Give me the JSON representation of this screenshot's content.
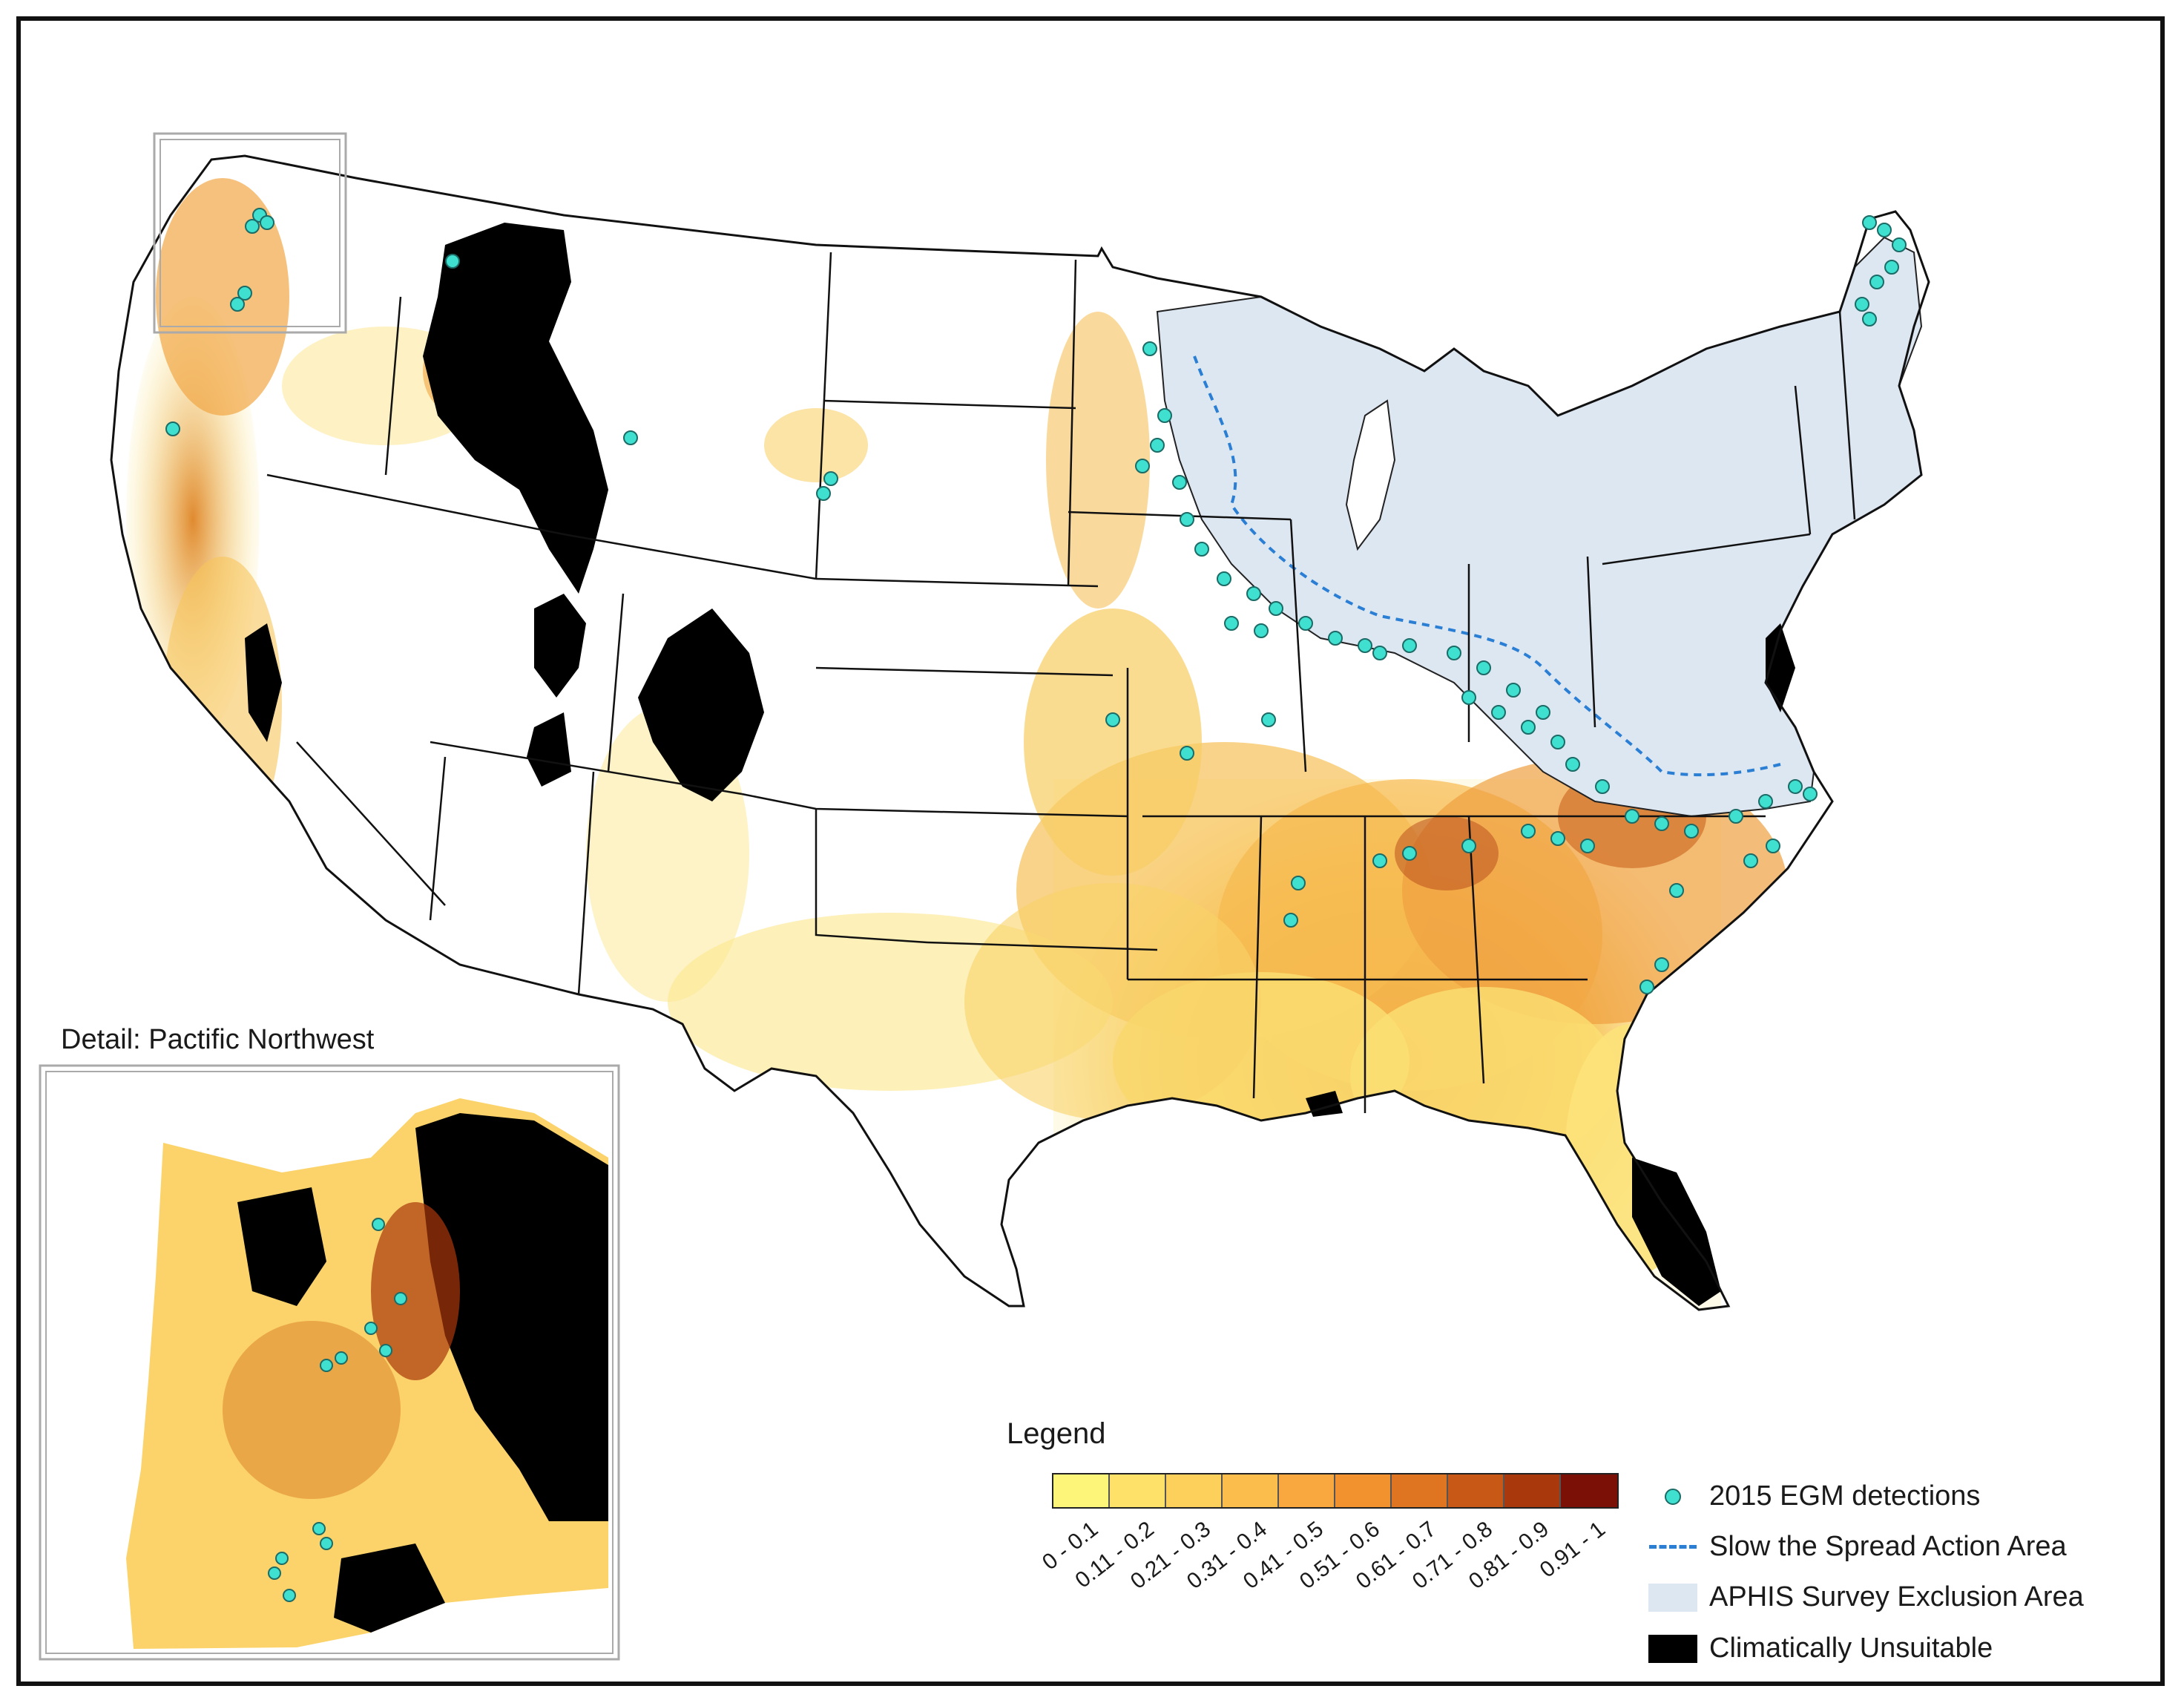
{
  "map": {
    "detail_title": "Detail: Pactific Northwest",
    "legend": {
      "title": "Legend",
      "ramp_classes": [
        {
          "label": "0 - 0.1",
          "color": "#fdf47a"
        },
        {
          "label": "0.11 - 0.2",
          "color": "#fde168"
        },
        {
          "label": "0.21 - 0.3",
          "color": "#fcd05a"
        },
        {
          "label": "0.31 - 0.4",
          "color": "#fbbd4c"
        },
        {
          "label": "0.41 - 0.5",
          "color": "#f8a83f"
        },
        {
          "label": "0.51 - 0.6",
          "color": "#f2922f"
        },
        {
          "label": "0.61 - 0.7",
          "color": "#df7520"
        },
        {
          "label": "0.71 - 0.8",
          "color": "#c85815"
        },
        {
          "label": "0.81 - 0.9",
          "color": "#a9380c"
        },
        {
          "label": "0.91 - 1",
          "color": "#7a1006"
        }
      ],
      "keys": [
        {
          "label": "2015 EGM detections",
          "symbol": "cyan-dot",
          "color": "#40e0d0"
        },
        {
          "label": "Slow the Spread Action Area",
          "symbol": "blue-dashed-line",
          "color": "#2a7fd4"
        },
        {
          "label": "APHIS Survey Exclusion Area",
          "symbol": "light-blue-fill",
          "color": "#dde7f2"
        },
        {
          "label": "Climatically Unsuitable",
          "symbol": "black-fill",
          "color": "#000000"
        }
      ]
    }
  }
}
